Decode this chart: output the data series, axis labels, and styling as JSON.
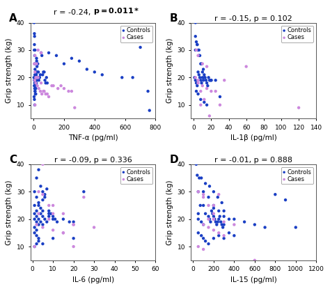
{
  "panels": [
    {
      "label": "A",
      "corr_text": "r = -0.24, ",
      "pval_text": "p = 0.011*",
      "pval_bold": true,
      "xlabel": "TNF-α (pg/ml)",
      "ylabel": "Grip strength (kg)",
      "xlim": [
        -20,
        800
      ],
      "ylim": [
        5,
        40
      ],
      "xticks": [
        0,
        200,
        400,
        600,
        800
      ],
      "yticks": [
        10,
        20,
        30,
        40
      ],
      "kde_xlim": [
        -30,
        850
      ],
      "kde_ylim": [
        3,
        42
      ],
      "controls_x": [
        3,
        5,
        5,
        6,
        7,
        8,
        8,
        9,
        10,
        10,
        11,
        12,
        13,
        14,
        15,
        16,
        17,
        18,
        19,
        20,
        20,
        21,
        22,
        23,
        25,
        28,
        30,
        32,
        35,
        40,
        45,
        50,
        55,
        60,
        65,
        70,
        75,
        80,
        85,
        90,
        4,
        6,
        8,
        10,
        12,
        15,
        5,
        8,
        10,
        15,
        100,
        150,
        200,
        250,
        300,
        350,
        400,
        450,
        580,
        650,
        700,
        750,
        760,
        4,
        6,
        8,
        10
      ],
      "controls_y": [
        20,
        19,
        30,
        32,
        35,
        18,
        25,
        21,
        17,
        23,
        20,
        19,
        22,
        20,
        21,
        22,
        19,
        21,
        18,
        19,
        27,
        26,
        25,
        24,
        22,
        25,
        20,
        22,
        19,
        20,
        21,
        29,
        28,
        21,
        22,
        22,
        19,
        18,
        20,
        18,
        13,
        12,
        10,
        15,
        14,
        16,
        17,
        16,
        15,
        14,
        29,
        28,
        25,
        27,
        26,
        23,
        22,
        21,
        20,
        20,
        31,
        15,
        8,
        40,
        36,
        28,
        30
      ],
      "cases_x": [
        8,
        15,
        25,
        35,
        45,
        55,
        65,
        80,
        100,
        130,
        160,
        200,
        230,
        270,
        10,
        20,
        30,
        50,
        70,
        90,
        120,
        180,
        250,
        10,
        20,
        30,
        50,
        5,
        10,
        15,
        20
      ],
      "cases_y": [
        19,
        18,
        17,
        16,
        15,
        14,
        15,
        14,
        13,
        17,
        16,
        16,
        15,
        9,
        28,
        25,
        20,
        18,
        15,
        14,
        17,
        17,
        15,
        22,
        20,
        30,
        29,
        25,
        10,
        20,
        20
      ]
    },
    {
      "label": "B",
      "corr_text": "r = -0.15, p = 0.102",
      "pval_text": "",
      "pval_bold": false,
      "xlabel": "IL-1β (pg/ml)",
      "ylabel": "Grip strength (kg)",
      "xlim": [
        -3,
        140
      ],
      "ylim": [
        5,
        40
      ],
      "xticks": [
        0,
        20,
        40,
        60,
        80,
        100,
        120,
        140
      ],
      "yticks": [
        10,
        20,
        30,
        40
      ],
      "kde_xlim": [
        -5,
        150
      ],
      "kde_ylim": [
        3,
        42
      ],
      "controls_x": [
        1,
        2,
        3,
        4,
        5,
        6,
        7,
        8,
        9,
        10,
        11,
        12,
        13,
        14,
        15,
        16,
        17,
        18,
        19,
        20,
        2,
        4,
        6,
        8,
        10,
        12,
        2,
        3,
        5,
        7,
        9,
        11,
        3,
        5,
        8,
        12,
        15,
        20,
        25,
        30,
        2,
        4,
        6
      ],
      "controls_y": [
        20,
        19,
        18,
        17,
        22,
        21,
        20,
        19,
        18,
        20,
        19,
        21,
        20,
        19,
        18,
        17,
        20,
        19,
        19,
        19,
        30,
        32,
        28,
        25,
        22,
        20,
        35,
        33,
        30,
        28,
        25,
        23,
        15,
        14,
        12,
        11,
        10,
        19,
        19,
        13,
        40,
        32,
        30
      ],
      "cases_x": [
        5,
        10,
        15,
        20,
        30,
        5,
        10,
        15,
        60,
        120,
        2,
        5,
        8,
        12,
        18,
        25,
        35,
        3,
        8
      ],
      "cases_y": [
        18,
        17,
        16,
        15,
        10,
        28,
        25,
        24,
        24,
        9,
        20,
        19,
        15,
        12,
        6,
        15,
        19,
        30,
        10
      ]
    },
    {
      "label": "C",
      "corr_text": "r = -0.09, p = 0.336",
      "pval_text": "",
      "pval_bold": false,
      "xlabel": "IL-6 (pg/ml)",
      "ylabel": "Grip strength (kg)",
      "xlim": [
        -1,
        60
      ],
      "ylim": [
        5,
        40
      ],
      "xticks": [
        0,
        10,
        20,
        30,
        40,
        50,
        60
      ],
      "yticks": [
        10,
        20,
        30,
        40
      ],
      "kde_xlim": [
        -2,
        65
      ],
      "kde_ylim": [
        3,
        42
      ],
      "controls_x": [
        1,
        1,
        1,
        2,
        2,
        2,
        3,
        3,
        4,
        4,
        5,
        5,
        6,
        7,
        8,
        9,
        10,
        11,
        12,
        15,
        18,
        20,
        1,
        2,
        3,
        5,
        8,
        10,
        2,
        3,
        4,
        5,
        6,
        1,
        2,
        3,
        5,
        10,
        20,
        25,
        1,
        2,
        3,
        4,
        5,
        6,
        7,
        8,
        1,
        2,
        3
      ],
      "controls_y": [
        20,
        22,
        25,
        19,
        21,
        23,
        18,
        20,
        22,
        19,
        21,
        18,
        20,
        19,
        23,
        22,
        21,
        20,
        19,
        20,
        19,
        13,
        30,
        28,
        25,
        23,
        21,
        20,
        35,
        38,
        32,
        30,
        28,
        15,
        14,
        13,
        11,
        13,
        19,
        30,
        17,
        16,
        26,
        24,
        27,
        29,
        31,
        22,
        10,
        11,
        12
      ],
      "cases_x": [
        2,
        5,
        10,
        15,
        20,
        25,
        30,
        1,
        3,
        8,
        15,
        20,
        5,
        10,
        20,
        5,
        10,
        3,
        8,
        15
      ],
      "cases_y": [
        18,
        17,
        16,
        15,
        18,
        28,
        17,
        10,
        22,
        20,
        15,
        10,
        29,
        25,
        18,
        40,
        22,
        30,
        25,
        22
      ]
    },
    {
      "label": "D",
      "corr_text": "r = -0.01, p = 0.888",
      "pval_text": "",
      "pval_bold": false,
      "xlabel": "IL-15 (pg/ml)",
      "ylabel": "Grip strength (kg)",
      "xlim": [
        -20,
        1200
      ],
      "ylim": [
        5,
        40
      ],
      "xticks": [
        0,
        200,
        400,
        600,
        800,
        1000,
        1200
      ],
      "yticks": [
        10,
        20,
        30,
        40
      ],
      "kde_xlim": [
        -50,
        1300
      ],
      "kde_ylim": [
        3,
        42
      ],
      "controls_x": [
        50,
        80,
        100,
        120,
        150,
        160,
        170,
        180,
        190,
        200,
        210,
        220,
        230,
        240,
        250,
        260,
        270,
        280,
        290,
        300,
        100,
        150,
        200,
        250,
        300,
        350,
        80,
        120,
        160,
        200,
        240,
        280,
        50,
        80,
        100,
        120,
        150,
        200,
        250,
        300,
        350,
        400,
        50,
        100,
        200,
        300,
        400,
        500,
        600,
        700,
        800,
        900,
        1000,
        30,
        40,
        50,
        60,
        70
      ],
      "controls_y": [
        20,
        19,
        18,
        22,
        21,
        20,
        19,
        23,
        22,
        21,
        20,
        19,
        18,
        19,
        20,
        21,
        19,
        18,
        17,
        18,
        30,
        28,
        25,
        23,
        21,
        20,
        35,
        33,
        32,
        30,
        28,
        26,
        15,
        14,
        13,
        12,
        11,
        13,
        14,
        13,
        15,
        14,
        22,
        25,
        24,
        23,
        20,
        19,
        18,
        17,
        29,
        27,
        17,
        40,
        36,
        30,
        35,
        25
      ],
      "cases_x": [
        100,
        150,
        200,
        250,
        300,
        100,
        150,
        200,
        250,
        50,
        100,
        200,
        300,
        400,
        50,
        100,
        200,
        600,
        150,
        200
      ],
      "cases_y": [
        18,
        17,
        16,
        15,
        14,
        28,
        25,
        22,
        29,
        10,
        9,
        20,
        19,
        18,
        30,
        29,
        25,
        5,
        20,
        20
      ]
    }
  ],
  "control_color": "#1a3fc4",
  "case_color": "#cc88dd",
  "background_color": "#ffffff"
}
